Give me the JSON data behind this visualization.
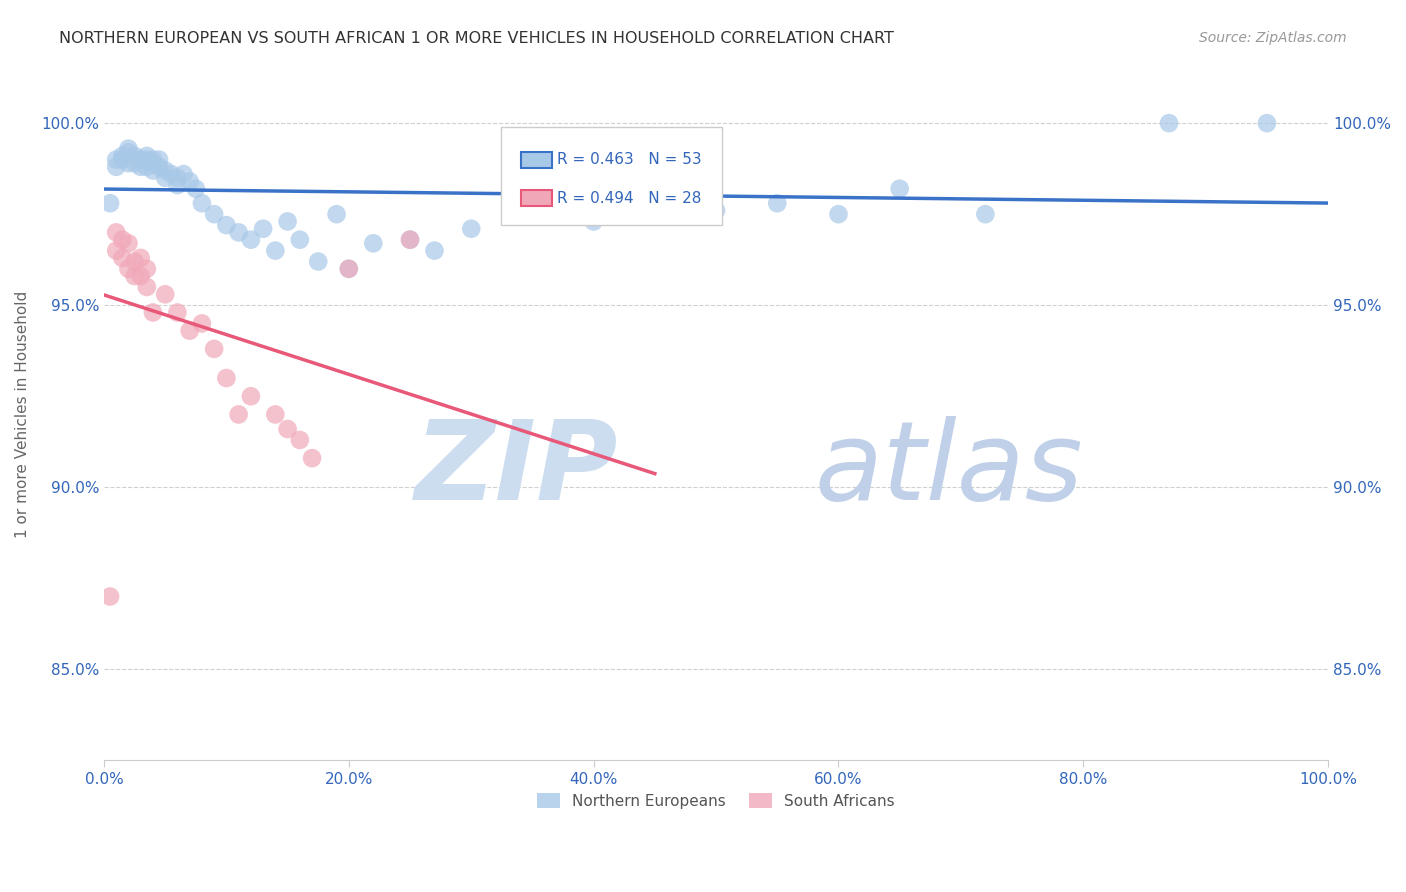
{
  "title": "NORTHERN EUROPEAN VS SOUTH AFRICAN 1 OR MORE VEHICLES IN HOUSEHOLD CORRELATION CHART",
  "source": "Source: ZipAtlas.com",
  "ylabel": "1 or more Vehicles in Household",
  "xlim": [
    0.0,
    1.0
  ],
  "ylim": [
    0.825,
    1.015
  ],
  "xticks": [
    0.0,
    0.2,
    0.4,
    0.6,
    0.8,
    1.0
  ],
  "xticklabels": [
    "0.0%",
    "20.0%",
    "40.0%",
    "60.0%",
    "80.0%",
    "100.0%"
  ],
  "ytick_positions": [
    0.85,
    0.9,
    0.95,
    1.0
  ],
  "ytick_labels": [
    "85.0%",
    "90.0%",
    "95.0%",
    "100.0%"
  ],
  "legend_ne": "Northern Europeans",
  "legend_sa": "South Africans",
  "ne_R": "R = 0.463",
  "ne_N": "N = 53",
  "sa_R": "R = 0.494",
  "sa_N": "N = 28",
  "ne_color": "#a8c8e8",
  "sa_color": "#f0a8b8",
  "ne_line_color": "#3a72c8",
  "sa_line_color": "#e85878",
  "background_color": "#ffffff",
  "grid_color": "#d0d0d0",
  "title_color": "#333333",
  "ne_x": [
    0.005,
    0.01,
    0.01,
    0.015,
    0.015,
    0.02,
    0.02,
    0.02,
    0.025,
    0.025,
    0.03,
    0.03,
    0.035,
    0.035,
    0.035,
    0.04,
    0.04,
    0.04,
    0.045,
    0.045,
    0.05,
    0.05,
    0.055,
    0.06,
    0.06,
    0.065,
    0.07,
    0.075,
    0.08,
    0.09,
    0.1,
    0.11,
    0.12,
    0.13,
    0.14,
    0.15,
    0.16,
    0.175,
    0.19,
    0.2,
    0.22,
    0.25,
    0.27,
    0.3,
    0.35,
    0.4,
    0.5,
    0.55,
    0.6,
    0.65,
    0.72,
    0.87,
    0.95
  ],
  "ne_y": [
    0.978,
    0.99,
    0.988,
    0.991,
    0.99,
    0.993,
    0.992,
    0.989,
    0.991,
    0.989,
    0.99,
    0.988,
    0.991,
    0.99,
    0.988,
    0.99,
    0.989,
    0.987,
    0.99,
    0.988,
    0.987,
    0.985,
    0.986,
    0.985,
    0.983,
    0.986,
    0.984,
    0.982,
    0.978,
    0.975,
    0.972,
    0.97,
    0.968,
    0.971,
    0.965,
    0.973,
    0.968,
    0.962,
    0.975,
    0.96,
    0.967,
    0.968,
    0.965,
    0.971,
    0.978,
    0.973,
    0.976,
    0.978,
    0.975,
    0.982,
    0.975,
    1.0,
    1.0
  ],
  "sa_x": [
    0.005,
    0.01,
    0.01,
    0.015,
    0.015,
    0.02,
    0.02,
    0.025,
    0.025,
    0.03,
    0.03,
    0.035,
    0.035,
    0.04,
    0.05,
    0.06,
    0.07,
    0.08,
    0.09,
    0.1,
    0.11,
    0.12,
    0.14,
    0.15,
    0.16,
    0.17,
    0.2,
    0.25
  ],
  "sa_y": [
    0.87,
    0.97,
    0.965,
    0.968,
    0.963,
    0.967,
    0.96,
    0.962,
    0.958,
    0.963,
    0.958,
    0.96,
    0.955,
    0.948,
    0.953,
    0.948,
    0.943,
    0.945,
    0.938,
    0.93,
    0.92,
    0.925,
    0.92,
    0.916,
    0.913,
    0.908,
    0.96,
    0.968
  ],
  "ne_line_x_start": 0.0,
  "ne_line_x_end": 1.0,
  "sa_line_x_start": 0.0,
  "sa_line_x_end": 0.45,
  "watermark_zip_color": "#ccddf0",
  "watermark_atlas_color": "#c0d0e8"
}
